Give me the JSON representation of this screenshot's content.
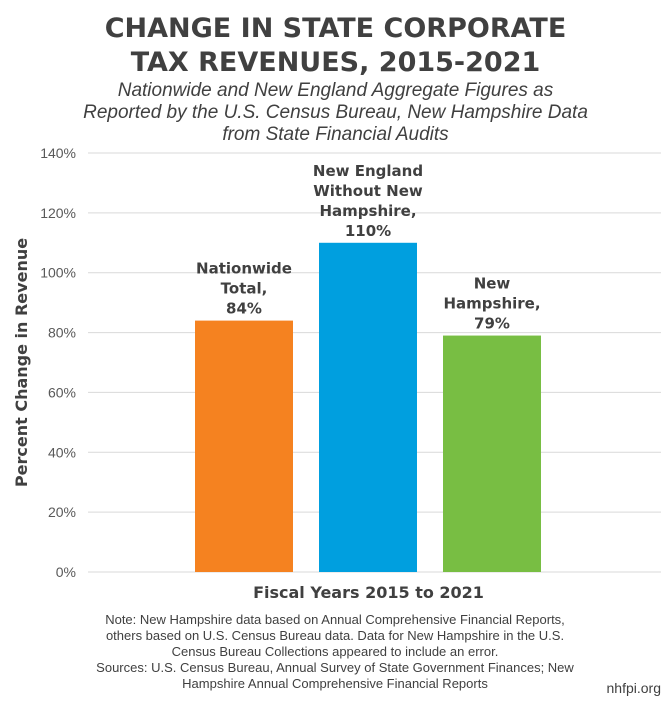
{
  "title_lines": [
    "CHANGE IN STATE CORPORATE",
    "TAX REVENUES, 2015-2021"
  ],
  "subtitle_lines": [
    "Nationwide and New England Aggregate Figures as",
    "Reported by the U.S. Census Bureau, New Hampshire Data",
    "from State Financial Audits"
  ],
  "note_lines": [
    "Note: New Hampshire data based on Annual Comprehensive Financial Reports,",
    "others based on U.S. Census Bureau data. Data for New Hampshire in the U.S.",
    "Census Bureau Collections appeared to include an error.",
    "Sources: U.S. Census Bureau, Annual Survey of State Government Finances; New",
    "Hampshire Annual Comprehensive Financial Reports"
  ],
  "brand": "nhfpi.org",
  "chart_data": {
    "type": "bar",
    "title": "CHANGE IN STATE CORPORATE TAX REVENUES, 2015-2021",
    "xlabel": "Fiscal Years 2015 to 2021",
    "ylabel": "Percent Change in Revenue",
    "ylim": [
      0,
      140
    ],
    "yticks": [
      "0%",
      "20%",
      "40%",
      "60%",
      "80%",
      "100%",
      "120%",
      "140%"
    ],
    "grid": true,
    "categories": [
      "Nationwide Total",
      "New England Without New Hampshire",
      "New Hampshire"
    ],
    "values": [
      84,
      110,
      79
    ],
    "colors": [
      "#f58220",
      "#009fdf",
      "#78be43"
    ],
    "data_labels": [
      [
        "Nationwide",
        "Total,",
        "84%"
      ],
      [
        "New England",
        "Without New",
        "Hampshire,",
        "110%"
      ],
      [
        "New",
        "Hampshire,",
        "79%"
      ]
    ]
  }
}
